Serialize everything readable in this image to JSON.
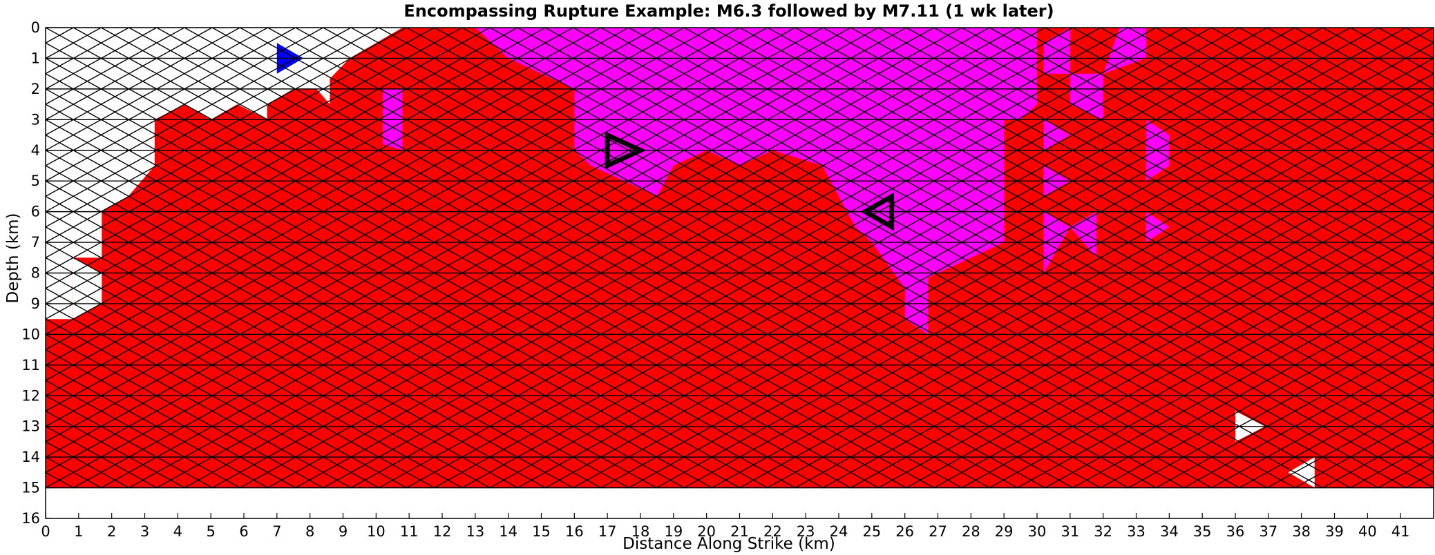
{
  "chart_data": {
    "type": "heatmap",
    "title": "Encompassing Rupture Example: M6.3 followed by M7.11 (1 wk later)",
    "xlabel": "Distance Along Strike (km)",
    "ylabel": "Depth (km)",
    "xlim": [
      0,
      42
    ],
    "ylim": [
      16,
      0
    ],
    "x_ticks": [
      "0",
      "1",
      "2",
      "3",
      "4",
      "5",
      "6",
      "7",
      "8",
      "9",
      "10",
      "11",
      "12",
      "13",
      "14",
      "15",
      "16",
      "17",
      "18",
      "19",
      "20",
      "21",
      "22",
      "23",
      "24",
      "25",
      "26",
      "27",
      "28",
      "29",
      "30",
      "31",
      "32",
      "33",
      "34",
      "35",
      "36",
      "37",
      "38",
      "39",
      "40",
      "41"
    ],
    "y_ticks": [
      "0",
      "1",
      "2",
      "3",
      "4",
      "5",
      "6",
      "7",
      "8",
      "9",
      "10",
      "11",
      "12",
      "13",
      "14",
      "15",
      "16"
    ],
    "grid": "triangular mesh, 0.84 km across strike, 1 km down dip",
    "mesh_bottom_depth_km": 15,
    "colors": {
      "background_element": "#ffffff",
      "ruptured_both": "#ff0000",
      "ruptured_m711": "#ff00ff",
      "ruptured_m63_only": "#0000ff",
      "mesh_line_dark": "#000000",
      "mesh_line_light": "#999999"
    },
    "hypocenters": [
      {
        "event": "M6.3",
        "x_km": 17.5,
        "depth_km": 4.0,
        "symbol": "right-pointing triangle outline"
      },
      {
        "event": "M7.11",
        "x_km": 25.3,
        "depth_km": 6.0,
        "symbol": "left-pointing triangle outline"
      }
    ],
    "regions": {
      "white_top_left_profile": [
        [
          0,
          0
        ],
        [
          0,
          9.5
        ],
        [
          0.8,
          9.5
        ],
        [
          0.8,
          7.5
        ],
        [
          1.7,
          7.5
        ],
        [
          1.7,
          6
        ],
        [
          2.5,
          5.5
        ],
        [
          3.3,
          4.5
        ],
        [
          3.3,
          3
        ],
        [
          4.2,
          2.5
        ],
        [
          5,
          3
        ],
        [
          5.8,
          2.5
        ],
        [
          6.7,
          3
        ],
        [
          6.7,
          2.5
        ],
        [
          7.5,
          2
        ],
        [
          8.3,
          2
        ],
        [
          9.2,
          1
        ],
        [
          10,
          0.5
        ],
        [
          10.8,
          0
        ],
        [
          0,
          0
        ]
      ],
      "magenta_main_outline": [
        [
          13,
          0
        ],
        [
          30,
          0
        ],
        [
          30,
          2.5
        ],
        [
          29.5,
          3
        ],
        [
          29,
          3
        ],
        [
          29,
          7
        ],
        [
          28,
          7.5
        ],
        [
          27,
          8
        ],
        [
          26,
          8.5
        ],
        [
          25,
          7
        ],
        [
          24.5,
          6.5
        ],
        [
          24,
          5.5
        ],
        [
          23.5,
          4.5
        ],
        [
          22,
          4
        ],
        [
          21,
          4.5
        ],
        [
          20,
          4
        ],
        [
          19,
          4.5
        ],
        [
          18.5,
          5.5
        ],
        [
          17.5,
          5
        ],
        [
          16.5,
          4.5
        ],
        [
          16,
          4
        ],
        [
          16,
          2
        ],
        [
          15,
          1.5
        ],
        [
          14,
          1
        ],
        [
          13,
          0
        ]
      ],
      "magenta_patches": [
        [
          [
            10.2,
            2
          ],
          [
            10.8,
            2
          ],
          [
            10.8,
            4
          ],
          [
            10.2,
            3.8
          ]
        ],
        [
          [
            30.2,
            0.5
          ],
          [
            31,
            0
          ],
          [
            31,
            1.5
          ],
          [
            30.2,
            1.5
          ]
        ],
        [
          [
            31,
            1.5
          ],
          [
            32,
            1.5
          ],
          [
            32,
            3
          ],
          [
            31,
            2.5
          ]
        ],
        [
          [
            32.5,
            0
          ],
          [
            33.3,
            0
          ],
          [
            33.3,
            1
          ],
          [
            32,
            1.5
          ]
        ],
        [
          [
            33.3,
            3
          ],
          [
            34,
            3.5
          ],
          [
            34,
            4.5
          ],
          [
            33.3,
            5
          ]
        ],
        [
          [
            30.2,
            3
          ],
          [
            31,
            3.5
          ],
          [
            30.2,
            4
          ]
        ],
        [
          [
            30.2,
            4.5
          ],
          [
            31,
            5
          ],
          [
            30.2,
            5.5
          ]
        ],
        [
          [
            30.2,
            6
          ],
          [
            31,
            6.5
          ],
          [
            30.2,
            8
          ]
        ],
        [
          [
            31,
            6.5
          ],
          [
            31.8,
            6
          ],
          [
            31.8,
            7.5
          ]
        ],
        [
          [
            33.3,
            6
          ],
          [
            34,
            6.5
          ],
          [
            33.3,
            7
          ]
        ],
        [
          [
            26,
            8.5
          ],
          [
            26.7,
            8
          ],
          [
            26.7,
            10
          ],
          [
            26,
            9.5
          ]
        ]
      ],
      "blue_patches": [
        [
          [
            7,
            0.5
          ],
          [
            7.8,
            1
          ],
          [
            7,
            1.5
          ]
        ]
      ],
      "white_patches": [
        [
          [
            7.8,
            1.5
          ],
          [
            8.6,
            1.5
          ],
          [
            8.6,
            2.5
          ]
        ],
        [
          [
            0.8,
            7.5
          ],
          [
            1.7,
            8
          ],
          [
            1.7,
            9
          ],
          [
            0.8,
            9.5
          ]
        ],
        [
          [
            36,
            12.5
          ],
          [
            36.9,
            13
          ],
          [
            36,
            13.5
          ]
        ],
        [
          [
            38.4,
            14
          ],
          [
            38.4,
            15
          ],
          [
            37.6,
            14.5
          ]
        ]
      ]
    }
  }
}
